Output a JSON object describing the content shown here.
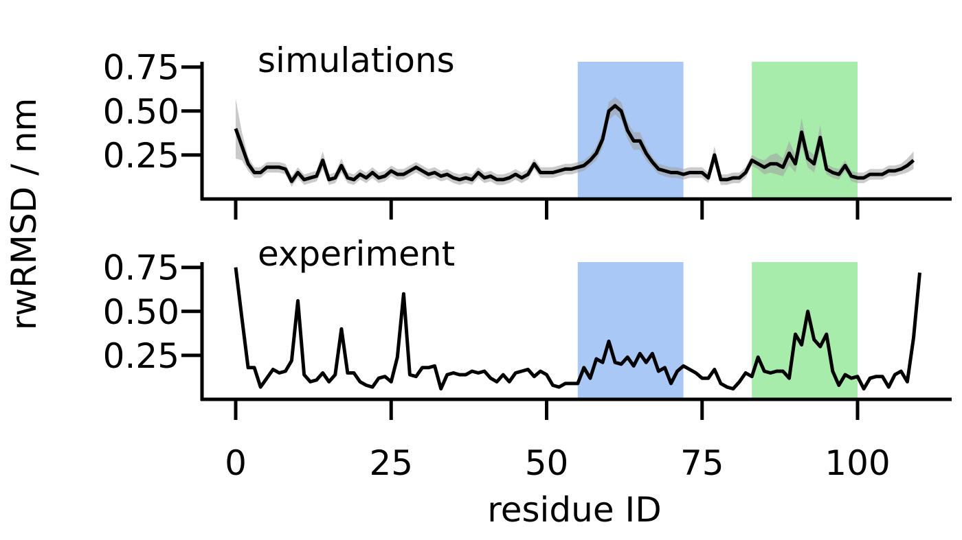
{
  "chart_data": {
    "type": "line",
    "xlabel": "residue ID",
    "ylabel": "rwRMSD / nm",
    "xlim": [
      -5,
      114
    ],
    "xticks": [
      0,
      25,
      50,
      75,
      100
    ],
    "xtick_labels": [
      "0",
      "25",
      "50",
      "75",
      "100"
    ],
    "yticks": [
      0.25,
      0.5,
      0.75
    ],
    "ytick_labels": [
      "0.25",
      "0.50",
      "0.75"
    ],
    "grid": false,
    "line_color": "#000000",
    "band_color": "#9e9e9e",
    "regions": [
      {
        "start": 55,
        "end": 72,
        "color": "#a9c8f5"
      },
      {
        "start": 83,
        "end": 100,
        "color": "#a8ecac"
      }
    ],
    "panels": [
      {
        "title": "simulations",
        "ylim": [
          0,
          0.78
        ],
        "x_start": 0,
        "values": [
          0.4,
          0.3,
          0.2,
          0.15,
          0.15,
          0.18,
          0.18,
          0.18,
          0.17,
          0.1,
          0.15,
          0.11,
          0.12,
          0.13,
          0.22,
          0.11,
          0.12,
          0.19,
          0.12,
          0.11,
          0.14,
          0.12,
          0.15,
          0.12,
          0.13,
          0.16,
          0.14,
          0.14,
          0.16,
          0.18,
          0.16,
          0.14,
          0.15,
          0.13,
          0.14,
          0.12,
          0.11,
          0.12,
          0.11,
          0.15,
          0.12,
          0.13,
          0.11,
          0.11,
          0.12,
          0.14,
          0.12,
          0.14,
          0.2,
          0.15,
          0.15,
          0.15,
          0.16,
          0.17,
          0.17,
          0.18,
          0.19,
          0.22,
          0.26,
          0.34,
          0.5,
          0.53,
          0.5,
          0.39,
          0.33,
          0.33,
          0.26,
          0.21,
          0.17,
          0.16,
          0.15,
          0.15,
          0.14,
          0.15,
          0.15,
          0.15,
          0.12,
          0.25,
          0.11,
          0.11,
          0.12,
          0.12,
          0.15,
          0.22,
          0.2,
          0.18,
          0.2,
          0.2,
          0.18,
          0.26,
          0.2,
          0.38,
          0.23,
          0.2,
          0.35,
          0.17,
          0.15,
          0.14,
          0.19,
          0.13,
          0.12,
          0.12,
          0.14,
          0.14,
          0.14,
          0.16,
          0.16,
          0.17,
          0.19,
          0.22
        ],
        "band": [
          0.17,
          0.08,
          0.04,
          0.03,
          0.03,
          0.03,
          0.03,
          0.03,
          0.03,
          0.03,
          0.03,
          0.03,
          0.03,
          0.03,
          0.05,
          0.03,
          0.03,
          0.04,
          0.03,
          0.03,
          0.03,
          0.03,
          0.03,
          0.03,
          0.03,
          0.03,
          0.03,
          0.03,
          0.03,
          0.03,
          0.03,
          0.03,
          0.03,
          0.03,
          0.03,
          0.03,
          0.03,
          0.03,
          0.03,
          0.03,
          0.03,
          0.03,
          0.03,
          0.03,
          0.03,
          0.03,
          0.03,
          0.03,
          0.03,
          0.03,
          0.03,
          0.03,
          0.03,
          0.03,
          0.03,
          0.03,
          0.03,
          0.03,
          0.04,
          0.05,
          0.05,
          0.05,
          0.05,
          0.05,
          0.05,
          0.05,
          0.04,
          0.03,
          0.03,
          0.03,
          0.03,
          0.03,
          0.03,
          0.03,
          0.03,
          0.03,
          0.03,
          0.05,
          0.03,
          0.03,
          0.03,
          0.03,
          0.03,
          0.03,
          0.03,
          0.04,
          0.05,
          0.06,
          0.05,
          0.07,
          0.05,
          0.08,
          0.05,
          0.05,
          0.07,
          0.03,
          0.03,
          0.03,
          0.03,
          0.03,
          0.03,
          0.03,
          0.03,
          0.03,
          0.03,
          0.03,
          0.03,
          0.03,
          0.04,
          0.05
        ]
      },
      {
        "title": "experiment",
        "ylim": [
          0,
          0.78
        ],
        "x_start": 0,
        "values": [
          0.75,
          0.46,
          0.18,
          0.18,
          0.07,
          0.12,
          0.17,
          0.15,
          0.16,
          0.22,
          0.56,
          0.14,
          0.1,
          0.11,
          0.15,
          0.1,
          0.14,
          0.4,
          0.15,
          0.15,
          0.1,
          0.08,
          0.07,
          0.12,
          0.13,
          0.1,
          0.24,
          0.6,
          0.14,
          0.13,
          0.18,
          0.18,
          0.19,
          0.06,
          0.14,
          0.15,
          0.14,
          0.14,
          0.16,
          0.15,
          0.16,
          0.12,
          0.1,
          0.14,
          0.1,
          0.15,
          0.16,
          0.17,
          0.13,
          0.16,
          0.14,
          0.08,
          0.07,
          0.09,
          0.09,
          0.09,
          0.18,
          0.12,
          0.23,
          0.21,
          0.33,
          0.21,
          0.2,
          0.24,
          0.19,
          0.26,
          0.21,
          0.26,
          0.16,
          0.18,
          0.09,
          0.16,
          0.19,
          0.17,
          0.15,
          0.12,
          0.12,
          0.17,
          0.09,
          0.07,
          0.06,
          0.1,
          0.15,
          0.13,
          0.24,
          0.16,
          0.15,
          0.16,
          0.16,
          0.12,
          0.37,
          0.31,
          0.5,
          0.34,
          0.3,
          0.37,
          0.16,
          0.08,
          0.14,
          0.12,
          0.13,
          0.06,
          0.12,
          0.13,
          0.13,
          0.07,
          0.14,
          0.16,
          0.1,
          0.35,
          0.72
        ]
      }
    ]
  }
}
